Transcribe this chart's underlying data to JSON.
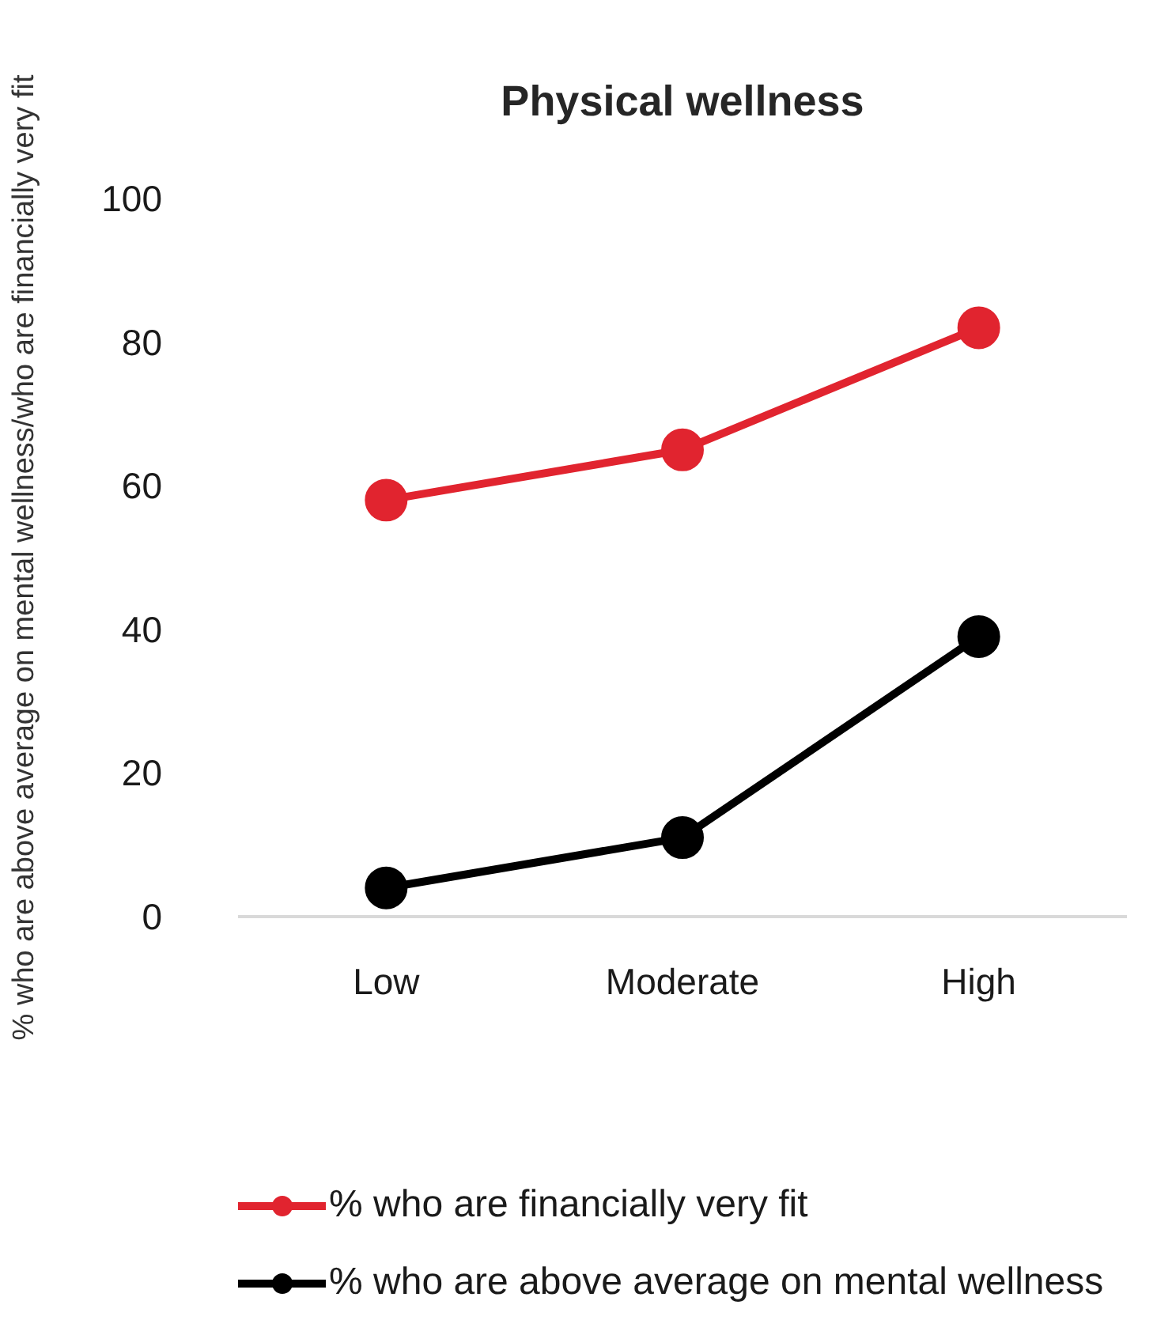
{
  "chart_data": {
    "type": "line",
    "title": "Physical wellness",
    "ylabel": "% who are above average on mental wellness/who are financially very fit",
    "categories": [
      "Low",
      "Moderate",
      "High"
    ],
    "series": [
      {
        "name": "% who are financially very fit",
        "color": "#e1242f",
        "values": [
          58,
          65,
          82
        ]
      },
      {
        "name": "% who are above average on mental wellness",
        "color": "#000000",
        "values": [
          4,
          11,
          39
        ]
      }
    ],
    "ylim": [
      0,
      100
    ],
    "yticks": [
      0,
      20,
      40,
      60,
      80,
      100
    ],
    "grid": false,
    "legend": "bottom",
    "marker": "circle",
    "line_style": "solid"
  }
}
